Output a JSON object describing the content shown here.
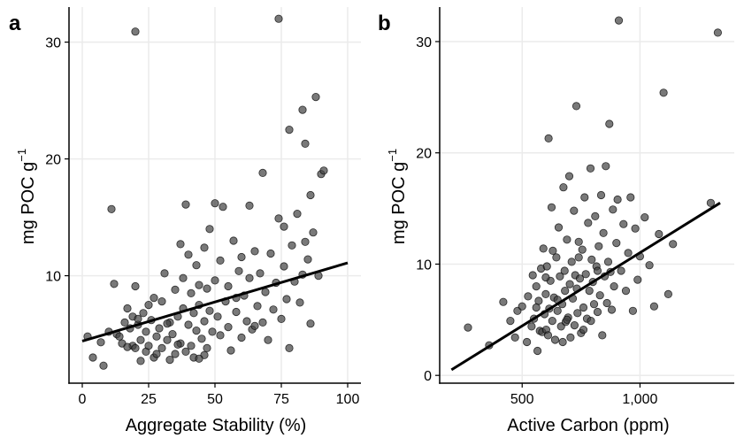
{
  "chart_data": [
    {
      "type": "scatter",
      "panel_label": "a",
      "xlabel": "Aggregate Stability (%)",
      "ylabel": "mg POC g",
      "ylabel_superscript": "−1",
      "xlim": [
        -5,
        105
      ],
      "ylim": [
        0.8,
        33
      ],
      "xticks": [
        0,
        25,
        50,
        75,
        100
      ],
      "xtick_labels": [
        "0",
        "25",
        "50",
        "75",
        "100"
      ],
      "yticks": [
        10,
        20,
        30
      ],
      "ytick_labels": [
        "10",
        "20",
        "30"
      ],
      "grid": true,
      "point_color": "#404040",
      "trend_line": {
        "x": [
          0,
          100
        ],
        "y": [
          4.4,
          11.1
        ]
      },
      "points": [
        [
          2,
          4.8
        ],
        [
          4,
          3.0
        ],
        [
          7,
          4.3
        ],
        [
          8,
          2.3
        ],
        [
          10,
          5.2
        ],
        [
          11,
          15.7
        ],
        [
          12,
          9.3
        ],
        [
          13,
          5.0
        ],
        [
          15,
          4.2
        ],
        [
          16,
          6.0
        ],
        [
          17,
          7.2
        ],
        [
          18,
          5.5
        ],
        [
          19,
          4.0
        ],
        [
          19,
          6.5
        ],
        [
          20,
          9.1
        ],
        [
          20,
          3.8
        ],
        [
          20,
          30.9
        ],
        [
          21,
          5.8
        ],
        [
          22,
          4.5
        ],
        [
          22,
          2.7
        ],
        [
          23,
          6.8
        ],
        [
          24,
          3.5
        ],
        [
          24,
          5.2
        ],
        [
          25,
          7.5
        ],
        [
          25,
          4.0
        ],
        [
          26,
          6.2
        ],
        [
          27,
          3.0
        ],
        [
          27,
          8.1
        ],
        [
          28,
          4.8
        ],
        [
          29,
          5.5
        ],
        [
          30,
          7.8
        ],
        [
          30,
          3.8
        ],
        [
          31,
          10.2
        ],
        [
          32,
          4.5
        ],
        [
          33,
          6.0
        ],
        [
          33,
          2.8
        ],
        [
          34,
          5.0
        ],
        [
          35,
          8.8
        ],
        [
          35,
          3.3
        ],
        [
          36,
          6.5
        ],
        [
          37,
          12.7
        ],
        [
          37,
          4.2
        ],
        [
          38,
          7.2
        ],
        [
          38,
          9.8
        ],
        [
          39,
          3.5
        ],
        [
          39,
          16.1
        ],
        [
          40,
          5.8
        ],
        [
          40,
          11.8
        ],
        [
          41,
          4.0
        ],
        [
          41,
          8.5
        ],
        [
          42,
          6.8
        ],
        [
          42,
          3.0
        ],
        [
          43,
          10.9
        ],
        [
          43,
          5.3
        ],
        [
          44,
          7.5
        ],
        [
          44,
          9.2
        ],
        [
          45,
          4.6
        ],
        [
          46,
          12.4
        ],
        [
          46,
          6.1
        ],
        [
          47,
          8.9
        ],
        [
          47,
          3.8
        ],
        [
          48,
          14.0
        ],
        [
          48,
          7.0
        ],
        [
          49,
          5.2
        ],
        [
          50,
          16.2
        ],
        [
          50,
          9.6
        ],
        [
          51,
          6.5
        ],
        [
          52,
          4.9
        ],
        [
          52,
          11.3
        ],
        [
          53,
          15.9
        ],
        [
          54,
          7.8
        ],
        [
          55,
          5.6
        ],
        [
          55,
          9.1
        ],
        [
          56,
          3.6
        ],
        [
          57,
          13.0
        ],
        [
          58,
          6.9
        ],
        [
          59,
          10.4
        ],
        [
          60,
          11.6
        ],
        [
          60,
          4.7
        ],
        [
          61,
          8.3
        ],
        [
          62,
          6.1
        ],
        [
          63,
          16.0
        ],
        [
          63,
          9.8
        ],
        [
          64,
          5.4
        ],
        [
          65,
          12.1
        ],
        [
          66,
          7.4
        ],
        [
          67,
          10.2
        ],
        [
          68,
          6.0
        ],
        [
          68,
          18.8
        ],
        [
          69,
          8.6
        ],
        [
          70,
          4.5
        ],
        [
          71,
          11.9
        ],
        [
          72,
          7.1
        ],
        [
          73,
          9.4
        ],
        [
          74,
          14.9
        ],
        [
          74,
          32.0
        ],
        [
          75,
          6.3
        ],
        [
          76,
          10.8
        ],
        [
          76,
          14.2
        ],
        [
          77,
          8.0
        ],
        [
          78,
          3.8
        ],
        [
          78,
          22.5
        ],
        [
          79,
          12.6
        ],
        [
          80,
          9.5
        ],
        [
          81,
          15.3
        ],
        [
          82,
          7.7
        ],
        [
          83,
          24.2
        ],
        [
          83,
          10.1
        ],
        [
          84,
          21.3
        ],
        [
          85,
          11.4
        ],
        [
          86,
          16.9
        ],
        [
          86,
          5.9
        ],
        [
          87,
          13.7
        ],
        [
          88,
          25.3
        ],
        [
          89,
          10.0
        ],
        [
          90,
          18.7
        ],
        [
          91,
          19.0
        ],
        [
          84,
          12.9
        ],
        [
          65,
          5.7
        ],
        [
          58,
          8.1
        ],
        [
          46,
          3.2
        ],
        [
          44,
          2.9
        ],
        [
          36,
          4.1
        ],
        [
          32,
          5.9
        ],
        [
          28,
          3.3
        ],
        [
          21,
          6.3
        ],
        [
          17,
          3.9
        ],
        [
          14,
          4.8
        ]
      ]
    },
    {
      "type": "scatter",
      "panel_label": "b",
      "xlabel": "Active Carbon (ppm)",
      "ylabel": "mg POC g",
      "ylabel_superscript": "−1",
      "xlim": [
        150,
        1400
      ],
      "ylim": [
        -0.7,
        33.1
      ],
      "xticks": [
        500,
        1000
      ],
      "xtick_labels": [
        "500",
        "1,000"
      ],
      "yticks": [
        0,
        10,
        20,
        30
      ],
      "ytick_labels": [
        "0",
        "10",
        "20",
        "30"
      ],
      "grid": true,
      "point_color": "#404040",
      "trend_line": {
        "x": [
          200,
          1340
        ],
        "y": [
          0.5,
          15.5
        ]
      },
      "points": [
        [
          270,
          4.3
        ],
        [
          360,
          2.7
        ],
        [
          420,
          6.6
        ],
        [
          450,
          4.9
        ],
        [
          470,
          3.4
        ],
        [
          480,
          5.8
        ],
        [
          500,
          6.2
        ],
        [
          520,
          3.0
        ],
        [
          525,
          7.1
        ],
        [
          540,
          4.4
        ],
        [
          545,
          9.0
        ],
        [
          550,
          5.1
        ],
        [
          560,
          8.0
        ],
        [
          565,
          2.2
        ],
        [
          570,
          6.7
        ],
        [
          575,
          4.0
        ],
        [
          580,
          9.6
        ],
        [
          585,
          3.9
        ],
        [
          590,
          11.4
        ],
        [
          595,
          5.5
        ],
        [
          600,
          7.3
        ],
        [
          602,
          4.1
        ],
        [
          605,
          9.8
        ],
        [
          610,
          3.6
        ],
        [
          612,
          21.3
        ],
        [
          615,
          6.0
        ],
        [
          620,
          8.5
        ],
        [
          625,
          15.1
        ],
        [
          628,
          4.9
        ],
        [
          630,
          11.2
        ],
        [
          635,
          7.0
        ],
        [
          640,
          3.2
        ],
        [
          645,
          10.6
        ],
        [
          650,
          5.8
        ],
        [
          655,
          13.3
        ],
        [
          660,
          8.9
        ],
        [
          665,
          4.4
        ],
        [
          670,
          6.4
        ],
        [
          672,
          3.0
        ],
        [
          675,
          16.9
        ],
        [
          680,
          9.4
        ],
        [
          682,
          7.6
        ],
        [
          685,
          4.8
        ],
        [
          690,
          12.2
        ],
        [
          695,
          5.2
        ],
        [
          700,
          17.9
        ],
        [
          702,
          8.2
        ],
        [
          705,
          3.4
        ],
        [
          710,
          10.2
        ],
        [
          715,
          6.9
        ],
        [
          720,
          14.8
        ],
        [
          722,
          4.5
        ],
        [
          725,
          9.0
        ],
        [
          730,
          24.2
        ],
        [
          732,
          7.8
        ],
        [
          735,
          5.6
        ],
        [
          740,
          12.0
        ],
        [
          745,
          8.7
        ],
        [
          750,
          3.8
        ],
        [
          755,
          11.3
        ],
        [
          760,
          6.1
        ],
        [
          765,
          16.0
        ],
        [
          770,
          9.1
        ],
        [
          775,
          5.1
        ],
        [
          780,
          13.7
        ],
        [
          785,
          7.6
        ],
        [
          790,
          18.6
        ],
        [
          792,
          4.9
        ],
        [
          795,
          10.4
        ],
        [
          800,
          8.4
        ],
        [
          805,
          6.4
        ],
        [
          810,
          14.3
        ],
        [
          815,
          9.8
        ],
        [
          820,
          5.7
        ],
        [
          825,
          11.6
        ],
        [
          830,
          7.2
        ],
        [
          835,
          16.2
        ],
        [
          840,
          3.6
        ],
        [
          845,
          12.8
        ],
        [
          850,
          8.9
        ],
        [
          855,
          18.8
        ],
        [
          860,
          6.5
        ],
        [
          865,
          10.2
        ],
        [
          870,
          22.6
        ],
        [
          875,
          9.3
        ],
        [
          880,
          5.9
        ],
        [
          885,
          14.9
        ],
        [
          890,
          8.0
        ],
        [
          900,
          11.9
        ],
        [
          905,
          15.8
        ],
        [
          910,
          31.9
        ],
        [
          920,
          9.4
        ],
        [
          930,
          13.6
        ],
        [
          940,
          7.6
        ],
        [
          950,
          11.0
        ],
        [
          960,
          16.0
        ],
        [
          970,
          5.8
        ],
        [
          980,
          13.2
        ],
        [
          990,
          8.6
        ],
        [
          1000,
          10.7
        ],
        [
          1020,
          14.2
        ],
        [
          1040,
          9.9
        ],
        [
          1060,
          6.2
        ],
        [
          1080,
          12.7
        ],
        [
          1100,
          25.4
        ],
        [
          1120,
          7.3
        ],
        [
          1140,
          11.8
        ],
        [
          1300,
          15.5
        ],
        [
          1330,
          30.8
        ],
        [
          650,
          6.8
        ],
        [
          690,
          5.0
        ],
        [
          760,
          4.1
        ],
        [
          820,
          9.4
        ],
        [
          600,
          8.8
        ],
        [
          560,
          6.1
        ],
        [
          740,
          10.6
        ]
      ]
    }
  ]
}
